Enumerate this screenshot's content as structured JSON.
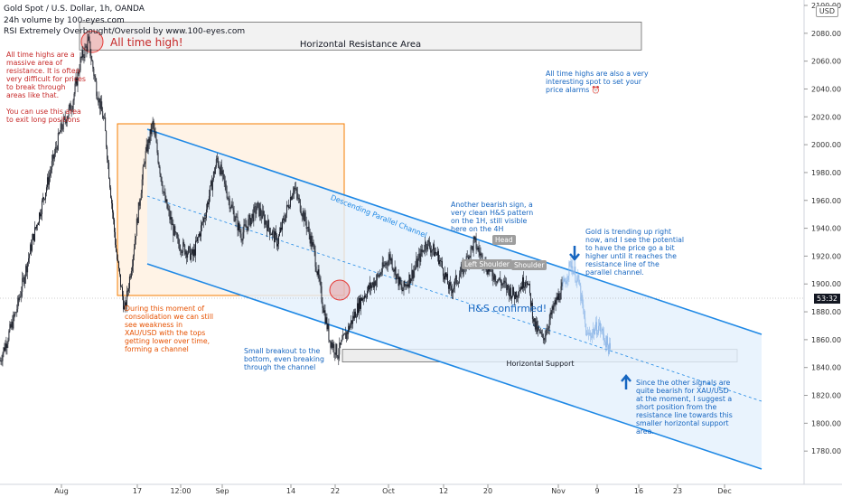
{
  "header": {
    "title": "Gold Spot / U.S. Dollar, 1h, OANDA",
    "indicator1": "24h volume by 100-eyes.com",
    "indicator2": "RSI Extremely Overbought/Oversold by www.100-eyes.com"
  },
  "currency_button": "USD",
  "price_tag": "53:32",
  "colors": {
    "channel": "#1e88e5",
    "channel_fill": "#e3f0fc",
    "consolidation": "#f57c00",
    "consolidation_fill": "#fff3e6",
    "annotation_red": "#c62828",
    "annotation_blue": "#1565c0",
    "candle": "#131722",
    "projection": "#90b8e8"
  },
  "annotations": {
    "ath_label": "All time high!",
    "resistance_area": "Horizontal Resistance Area",
    "support_area": "Horizontal Support",
    "channel_label": "Descending Parallel Channel",
    "hs_confirmed": "H&S confirmed!",
    "head": "Head",
    "left_shoulder": "Left Shoulder",
    "right_shoulder": "Shoulder",
    "note_ath": "All time highs are a massive area of resistance. It is often very difficult for prices to break through areas like that.\n\nYou can use this area to exit long positions",
    "note_alarm": "All time highs are also a very interesting spot to set your price alarms ⏰",
    "note_consolidation": "During this moment of consolidation we can still see weakness in XAU/USD with the tops getting lower over time, forming a channel",
    "note_breakout": "Small breakout to the bottom, even breaking through the channel",
    "note_hs": "Another bearish sign, a very clean H&S pattern on the 1H, still visible here on the 4H",
    "note_trend": "Gold is trending up right now, and I see the potential to have the price go a bit higher until it reaches the resistance line of the parallel channel.",
    "note_short": "Since the other signals are quite bearish for XAU/USD at the moment, I suggest a short position from the resistance line towards this smaller horizontal support area."
  },
  "chart_data": {
    "type": "candlestick",
    "title": "Gold Spot / U.S. Dollar, 1h, OANDA",
    "ylim": [
      1760,
      2100
    ],
    "y_ticks": [
      2100,
      2080,
      2060,
      2040,
      2020,
      2000,
      1980,
      1960,
      1940,
      1920,
      1900,
      1880,
      1860,
      1840,
      1820,
      1800,
      1780
    ],
    "x_ticks": [
      "Aug",
      "17",
      "12:00",
      "Sep",
      "14",
      "22",
      "Oct",
      "12",
      "20",
      "Nov",
      "9",
      "16",
      "23",
      "Dec"
    ],
    "price_path": [
      {
        "t": 0,
        "p": 1845
      },
      {
        "t": 0.02,
        "p": 1880
      },
      {
        "t": 0.04,
        "p": 1930
      },
      {
        "t": 0.06,
        "p": 1975
      },
      {
        "t": 0.075,
        "p": 2010
      },
      {
        "t": 0.09,
        "p": 2030
      },
      {
        "t": 0.1,
        "p": 2060
      },
      {
        "t": 0.11,
        "p": 2074
      },
      {
        "t": 0.12,
        "p": 2040
      },
      {
        "t": 0.13,
        "p": 2015
      },
      {
        "t": 0.145,
        "p": 1920
      },
      {
        "t": 0.155,
        "p": 1880
      },
      {
        "t": 0.165,
        "p": 1920
      },
      {
        "t": 0.18,
        "p": 1990
      },
      {
        "t": 0.19,
        "p": 2015
      },
      {
        "t": 0.205,
        "p": 1960
      },
      {
        "t": 0.22,
        "p": 1930
      },
      {
        "t": 0.24,
        "p": 1920
      },
      {
        "t": 0.255,
        "p": 1950
      },
      {
        "t": 0.27,
        "p": 1990
      },
      {
        "t": 0.285,
        "p": 1960
      },
      {
        "t": 0.3,
        "p": 1935
      },
      {
        "t": 0.32,
        "p": 1955
      },
      {
        "t": 0.345,
        "p": 1930
      },
      {
        "t": 0.365,
        "p": 1970
      },
      {
        "t": 0.38,
        "p": 1945
      },
      {
        "t": 0.39,
        "p": 1925
      },
      {
        "t": 0.4,
        "p": 1890
      },
      {
        "t": 0.41,
        "p": 1860
      },
      {
        "t": 0.42,
        "p": 1850
      },
      {
        "t": 0.435,
        "p": 1870
      },
      {
        "t": 0.45,
        "p": 1890
      },
      {
        "t": 0.47,
        "p": 1905
      },
      {
        "t": 0.485,
        "p": 1920
      },
      {
        "t": 0.5,
        "p": 1895
      },
      {
        "t": 0.515,
        "p": 1910
      },
      {
        "t": 0.53,
        "p": 1930
      },
      {
        "t": 0.545,
        "p": 1920
      },
      {
        "t": 0.56,
        "p": 1895
      },
      {
        "t": 0.575,
        "p": 1910
      },
      {
        "t": 0.59,
        "p": 1930
      },
      {
        "t": 0.605,
        "p": 1912
      },
      {
        "t": 0.625,
        "p": 1900
      },
      {
        "t": 0.64,
        "p": 1892
      },
      {
        "t": 0.655,
        "p": 1905
      },
      {
        "t": 0.665,
        "p": 1870
      },
      {
        "t": 0.675,
        "p": 1860
      },
      {
        "t": 0.69,
        "p": 1885
      },
      {
        "t": 0.7,
        "p": 1898
      }
    ],
    "projection_path": [
      {
        "t": 0.7,
        "p": 1898
      },
      {
        "t": 0.71,
        "p": 1915
      },
      {
        "t": 0.72,
        "p": 1900
      },
      {
        "t": 0.73,
        "p": 1862
      },
      {
        "t": 0.745,
        "p": 1870
      },
      {
        "t": 0.76,
        "p": 1850
      }
    ],
    "resistance_area": [
      2068,
      2088
    ],
    "support_area": [
      1844,
      1853
    ],
    "all_time_high": 2074
  }
}
